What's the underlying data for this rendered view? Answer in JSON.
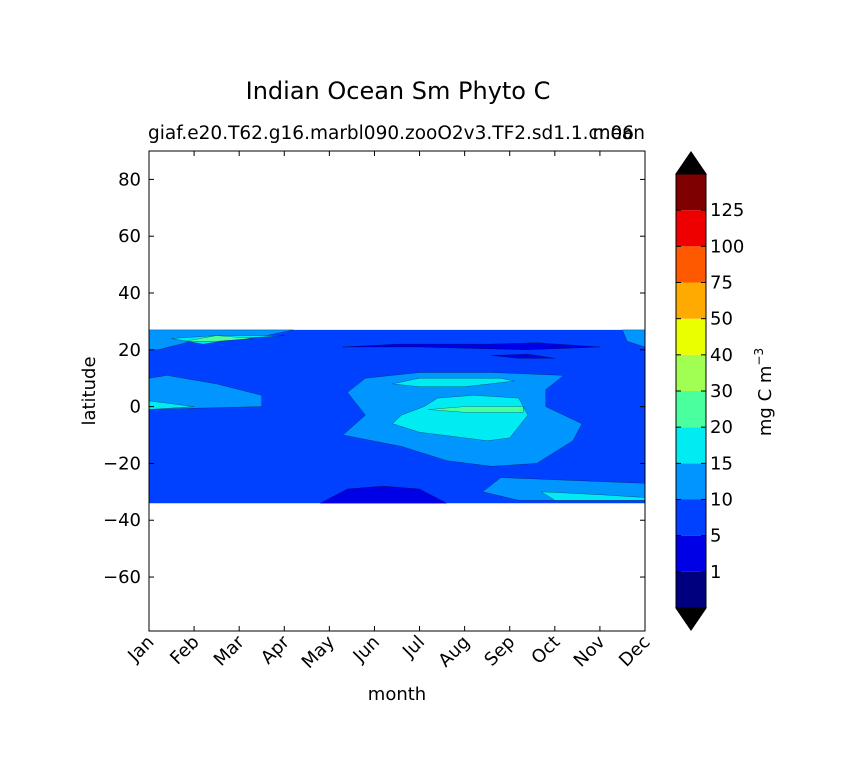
{
  "chart_data": {
    "type": "contourf",
    "title": "Indian Ocean Sm Phyto C",
    "subtitle_left": "giaf.e20.T62.g16.marbl090.zooO2v3.TF2.sd1.1.cr.06",
    "subtitle_right": "mean",
    "xlabel": "month",
    "ylabel": "latitude",
    "x_ticks": [
      "Jan",
      "Feb",
      "Mar",
      "Apr",
      "May",
      "Jun",
      "Jul",
      "Aug",
      "Sep",
      "Oct",
      "Nov",
      "Dec"
    ],
    "y_ticks": [
      80,
      60,
      40,
      20,
      0,
      -20,
      -40,
      -60
    ],
    "y_tick_labels": [
      "80",
      "60",
      "40",
      "20",
      "0",
      "−20",
      "−40",
      "−60"
    ],
    "xlim": [
      0,
      11
    ],
    "ylim": [
      -79,
      90
    ],
    "data_lat_range": [
      -34,
      27
    ],
    "colorbar": {
      "label": "mg C m",
      "label_exp": "−3",
      "extend": "both",
      "levels": [
        0,
        1,
        5,
        10,
        15,
        20,
        30,
        40,
        50,
        75,
        100,
        125,
        150
      ],
      "tick_values": [
        1,
        5,
        10,
        15,
        20,
        30,
        40,
        50,
        75,
        100,
        125
      ],
      "tick_labels": [
        "1",
        "5",
        "10",
        "15",
        "20",
        "30",
        "40",
        "50",
        "75",
        "100",
        "125"
      ],
      "colors": [
        "#00007f",
        "#0000e6",
        "#0040ff",
        "#0095ff",
        "#00ecf2",
        "#4aff9e",
        "#a0ff52",
        "#eaff00",
        "#ffaa00",
        "#ff5900",
        "#ee0000",
        "#7f0000"
      ],
      "under_color": "#000000",
      "over_color": "#000000"
    },
    "regions": [
      {
        "band": "5-10",
        "polygon": [
          [
            0,
            27
          ],
          [
            11,
            27
          ],
          [
            11,
            -34
          ],
          [
            0,
            -34
          ]
        ]
      },
      {
        "band": "10-15",
        "polygon": [
          [
            0,
            27
          ],
          [
            3.2,
            27
          ],
          [
            2.6,
            25
          ],
          [
            1.2,
            24
          ],
          [
            0.2,
            20
          ],
          [
            0,
            20
          ]
        ]
      },
      {
        "band": "10-15",
        "polygon": [
          [
            10.5,
            27
          ],
          [
            11,
            27
          ],
          [
            11,
            21
          ],
          [
            10.6,
            23
          ]
        ]
      },
      {
        "band": "10-15",
        "polygon": [
          [
            0,
            10
          ],
          [
            0.4,
            11
          ],
          [
            1.5,
            8
          ],
          [
            2.5,
            4
          ],
          [
            2.5,
            0
          ],
          [
            1.2,
            -0.5
          ],
          [
            0,
            -1
          ]
        ]
      },
      {
        "band": "10-15",
        "polygon": [
          [
            4.3,
            -10
          ],
          [
            4.8,
            -3
          ],
          [
            4.4,
            5
          ],
          [
            4.8,
            10
          ],
          [
            6.0,
            12
          ],
          [
            7.6,
            12
          ],
          [
            9.2,
            11
          ],
          [
            8.8,
            6
          ],
          [
            8.8,
            0
          ],
          [
            9.6,
            -6
          ],
          [
            9.4,
            -12
          ],
          [
            8.6,
            -20
          ],
          [
            7.6,
            -21
          ],
          [
            6.6,
            -19
          ],
          [
            5.6,
            -14
          ]
        ]
      },
      {
        "band": "10-15",
        "polygon": [
          [
            7.8,
            -25
          ],
          [
            11,
            -27
          ],
          [
            11,
            -33
          ],
          [
            8.2,
            -33
          ],
          [
            7.4,
            -30
          ]
        ]
      },
      {
        "band": "15-20",
        "polygon": [
          [
            0.5,
            24
          ],
          [
            1.2,
            22
          ],
          [
            2.0,
            24
          ],
          [
            3.0,
            25
          ],
          [
            1.5,
            25
          ]
        ]
      },
      {
        "band": "15-20",
        "polygon": [
          [
            0,
            2
          ],
          [
            1,
            0
          ],
          [
            0,
            -1
          ]
        ]
      },
      {
        "band": "15-20",
        "polygon": [
          [
            5.4,
            -6
          ],
          [
            5.6,
            -3
          ],
          [
            6.1,
            0
          ],
          [
            6.4,
            3
          ],
          [
            7.2,
            4
          ],
          [
            8.2,
            3
          ],
          [
            8.4,
            -3
          ],
          [
            8.0,
            -11
          ],
          [
            7.5,
            -12
          ],
          [
            6.0,
            -9
          ],
          [
            5.6,
            -7
          ]
        ]
      },
      {
        "band": "15-20",
        "polygon": [
          [
            5.4,
            8
          ],
          [
            6.0,
            10
          ],
          [
            7.8,
            10
          ],
          [
            8.1,
            9
          ],
          [
            7.0,
            7
          ],
          [
            6.0,
            7
          ]
        ]
      },
      {
        "band": "15-20",
        "polygon": [
          [
            8.7,
            -30
          ],
          [
            10,
            -31
          ],
          [
            11,
            -32
          ],
          [
            11,
            -33
          ],
          [
            9,
            -33
          ]
        ]
      },
      {
        "band": "20-30",
        "polygon": [
          [
            6.2,
            -1
          ],
          [
            7.0,
            0
          ],
          [
            8.3,
            0
          ],
          [
            8.3,
            -2
          ],
          [
            7.0,
            -2
          ]
        ]
      },
      {
        "band": "20-30",
        "polygon": [
          [
            0.8,
            23
          ],
          [
            1.5,
            25
          ],
          [
            2.3,
            24
          ],
          [
            1.5,
            23
          ]
        ]
      },
      {
        "band": "1-5",
        "polygon": [
          [
            3.8,
            -34
          ],
          [
            4.4,
            -29
          ],
          [
            5.2,
            -28
          ],
          [
            6.0,
            -29
          ],
          [
            6.6,
            -34
          ]
        ]
      },
      {
        "band": "1-5",
        "polygon": [
          [
            4.3,
            21
          ],
          [
            5.5,
            22
          ],
          [
            7.5,
            22
          ],
          [
            8.6,
            22.5
          ],
          [
            10.0,
            21
          ],
          [
            8.4,
            20
          ],
          [
            6.0,
            21
          ]
        ]
      },
      {
        "band": "1-5",
        "polygon": [
          [
            7.6,
            18
          ],
          [
            8.2,
            17
          ],
          [
            9.0,
            17
          ],
          [
            8.4,
            18.5
          ]
        ]
      }
    ]
  }
}
